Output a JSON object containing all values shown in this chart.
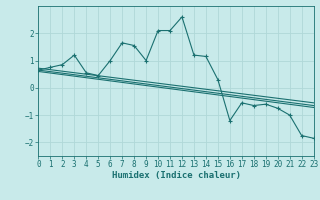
{
  "background_color": "#c8eaea",
  "grid_color": "#b0d8d8",
  "line_color": "#1a7070",
  "x_min": 0,
  "x_max": 23,
  "y_min": -2.5,
  "y_max": 3.0,
  "yticks": [
    -2,
    -1,
    0,
    1,
    2
  ],
  "xticks": [
    0,
    1,
    2,
    3,
    4,
    5,
    6,
    7,
    8,
    9,
    10,
    11,
    12,
    13,
    14,
    15,
    16,
    17,
    18,
    19,
    20,
    21,
    22,
    23
  ],
  "xlabel": "Humidex (Indice chaleur)",
  "series1_x": [
    0,
    1,
    2,
    3,
    4,
    5,
    6,
    7,
    8,
    9,
    10,
    11,
    12,
    13,
    14,
    15,
    16,
    17,
    18,
    19,
    20,
    21,
    22,
    23
  ],
  "series1_y": [
    0.65,
    0.75,
    0.85,
    1.2,
    0.55,
    0.45,
    1.0,
    1.65,
    1.55,
    1.0,
    2.1,
    2.1,
    2.6,
    1.2,
    1.15,
    0.3,
    -1.2,
    -0.55,
    -0.65,
    -0.6,
    -0.75,
    -1.0,
    -1.75,
    -1.85
  ],
  "series2_x": [
    0,
    23
  ],
  "series2_y": [
    0.72,
    -0.55
  ],
  "series3_x": [
    0,
    23
  ],
  "series3_y": [
    0.65,
    -0.65
  ],
  "series4_x": [
    0,
    23
  ],
  "series4_y": [
    0.6,
    -0.72
  ]
}
